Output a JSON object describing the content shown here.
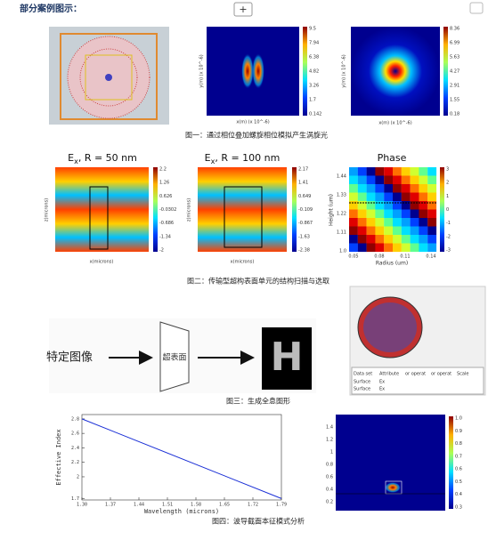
{
  "header": {
    "title": "部分案例图示：",
    "button": "+"
  },
  "figure1": {
    "caption": "图一：通过相位叠加螺旋相位模拟产生涡旋光",
    "panel2": {
      "colorbar": [
        "9.5",
        "7.94",
        "6.38",
        "4.82",
        "3.26",
        "1.7",
        "0.142"
      ],
      "x_label": "x(m) (x 10^-6)",
      "y_label": "y(m) (x 10^-6)"
    },
    "panel3": {
      "colorbar": [
        "8.36",
        "6.99",
        "5.63",
        "4.27",
        "2.91",
        "1.55",
        "0.18"
      ],
      "x_label": "x(m) (x 10^-6)",
      "y_label": "y(m) (x 10^-6)"
    }
  },
  "figure2": {
    "caption": "图二：传输型超构表面单元的结构扫描与选取",
    "panels": [
      {
        "title_main": "E",
        "title_sub": "x",
        "title_rest": ", R = 50 nm",
        "x_label": "x(microns)",
        "y_label": "z(microns)",
        "colorbar": [
          "2.2",
          "1.26",
          "0.626",
          "-0.0302",
          "-0.686",
          "-1.34",
          "-2"
        ]
      },
      {
        "title_main": "E",
        "title_sub": "x",
        "title_rest": ", R = 100 nm",
        "x_label": "x(microns)",
        "y_label": "z(microns)",
        "colorbar": [
          "2.17",
          "1.41",
          "0.649",
          "-0.109",
          "-0.867",
          "-1.63",
          "-2.38"
        ]
      }
    ],
    "phase": {
      "title": "Phase",
      "x_label": "Radius (um)",
      "y_label": "Height (um)",
      "xticks": [
        "0.05",
        "0.08",
        "0.11",
        "0.14"
      ],
      "yticks": [
        "1.44",
        "1.33",
        "1.22",
        "1.11",
        "1.0"
      ],
      "colorbar": [
        "3",
        "2",
        "1",
        "0",
        "-1",
        "-2",
        "-3"
      ]
    }
  },
  "figure3": {
    "caption": "图三：生成全息图形",
    "source": "特定图像",
    "metasurface": "超表面",
    "result": "H",
    "table_headers": [
      "Data set",
      "Attribute",
      "or operat",
      "or operat",
      "Scale"
    ],
    "table_rows": [
      [
        "Surface",
        "Ex"
      ],
      [
        "Surface",
        "Ex"
      ]
    ]
  },
  "figure4": {
    "caption": "图四：波导截面本征模式分析",
    "chart": {
      "type": "line",
      "x_label": "Wavelength (microns)",
      "y_label": "Effective Index",
      "x": [
        1.3,
        1.79
      ],
      "series": [
        {
          "color": "#1a2fd6",
          "values": [
            2.8,
            1.7
          ]
        }
      ],
      "xlim": [
        1.3,
        1.79
      ],
      "ylim": [
        1.68,
        2.86
      ],
      "xticks": [
        {
          "value": 1.3,
          "label": "1.30"
        },
        1.37,
        1.44,
        1.51,
        1.58,
        1.65,
        1.72,
        1.79
      ],
      "yticks": [
        1.7,
        2.0,
        2.2,
        2.4,
        2.6,
        2.8
      ]
    },
    "mode": {
      "yticks": [
        "1.4",
        "1.2",
        "1",
        "0.8",
        "0.6",
        "0.4",
        "0.2"
      ],
      "colorbar": [
        "1.0",
        "0.9",
        "0.8",
        "0.7",
        "0.6",
        "0.5",
        "0.4",
        "0.3"
      ]
    }
  }
}
